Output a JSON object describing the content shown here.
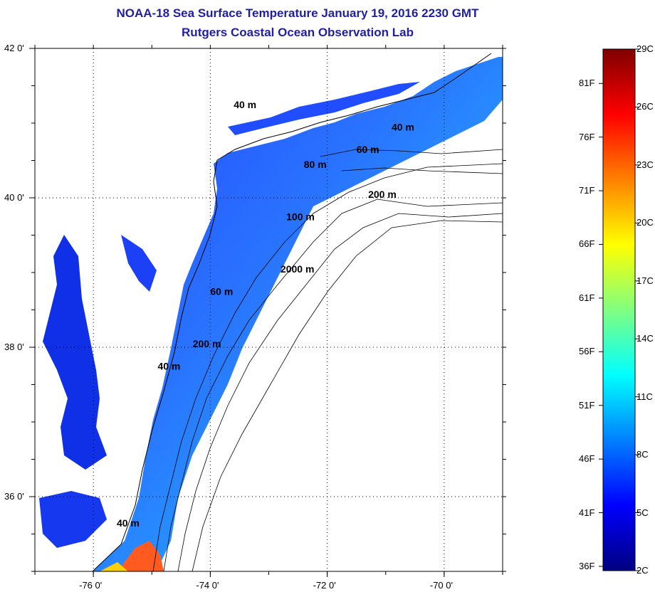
{
  "title_line1": "NOAA-18 Sea Surface Temperature January 19, 2016 2230 GMT",
  "title_line2": "Rutgers Coastal Ocean Observation Lab",
  "map": {
    "lon_range": [
      -77.0,
      -69.0
    ],
    "lat_range": [
      35.0,
      42.0
    ],
    "lon_ticks": [
      {
        "value": -76,
        "label": "-76 0'"
      },
      {
        "value": -74,
        "label": "-74 0'"
      },
      {
        "value": -72,
        "label": "-72 0'"
      },
      {
        "value": -70,
        "label": "-70 0'"
      }
    ],
    "lat_ticks": [
      {
        "value": 42,
        "label": "42 0'"
      },
      {
        "value": 40,
        "label": "40 0'"
      },
      {
        "value": 38,
        "label": "38 0'"
      },
      {
        "value": 36,
        "label": "36 0'"
      }
    ],
    "grid": "dotted",
    "contour_labels": [
      {
        "text": "40 m",
        "lon": -70.9,
        "lat": 40.9
      },
      {
        "text": "60 m",
        "lon": -71.5,
        "lat": 40.6
      },
      {
        "text": "80 m",
        "lon": -72.4,
        "lat": 40.4
      },
      {
        "text": "200 m",
        "lon": -71.3,
        "lat": 40.0
      },
      {
        "text": "100 m",
        "lon": -72.7,
        "lat": 39.7
      },
      {
        "text": "2000 m",
        "lon": -72.8,
        "lat": 39.0
      },
      {
        "text": "60 m",
        "lon": -74.0,
        "lat": 38.7
      },
      {
        "text": "200 m",
        "lon": -74.3,
        "lat": 38.0
      },
      {
        "text": "40 m",
        "lon": -74.9,
        "lat": 37.7
      },
      {
        "text": "40 m",
        "lon": -75.6,
        "lat": 35.6
      },
      {
        "text": "40 m",
        "lon": -73.6,
        "lat": 41.2
      }
    ]
  },
  "colorbar": {
    "min_c": 2,
    "max_c": 29,
    "celsius_labels": [
      "29C",
      "26C",
      "23C",
      "20C",
      "17C",
      "14C",
      "11C",
      "8C",
      "5C",
      "2C"
    ],
    "celsius_values": [
      29,
      26,
      23,
      20,
      17,
      14,
      11,
      8,
      5,
      2
    ],
    "fahrenheit_labels": [
      "81F",
      "76F",
      "71F",
      "66F",
      "61F",
      "56F",
      "51F",
      "46F",
      "41F",
      "36F"
    ],
    "fahrenheit_values": [
      81,
      76,
      71,
      66,
      61,
      56,
      51,
      46,
      41,
      36
    ],
    "colors": [
      "#00007f",
      "#0000ff",
      "#0080ff",
      "#00ffff",
      "#80ff80",
      "#ffff00",
      "#ff8000",
      "#ff0000",
      "#7f0000"
    ]
  }
}
